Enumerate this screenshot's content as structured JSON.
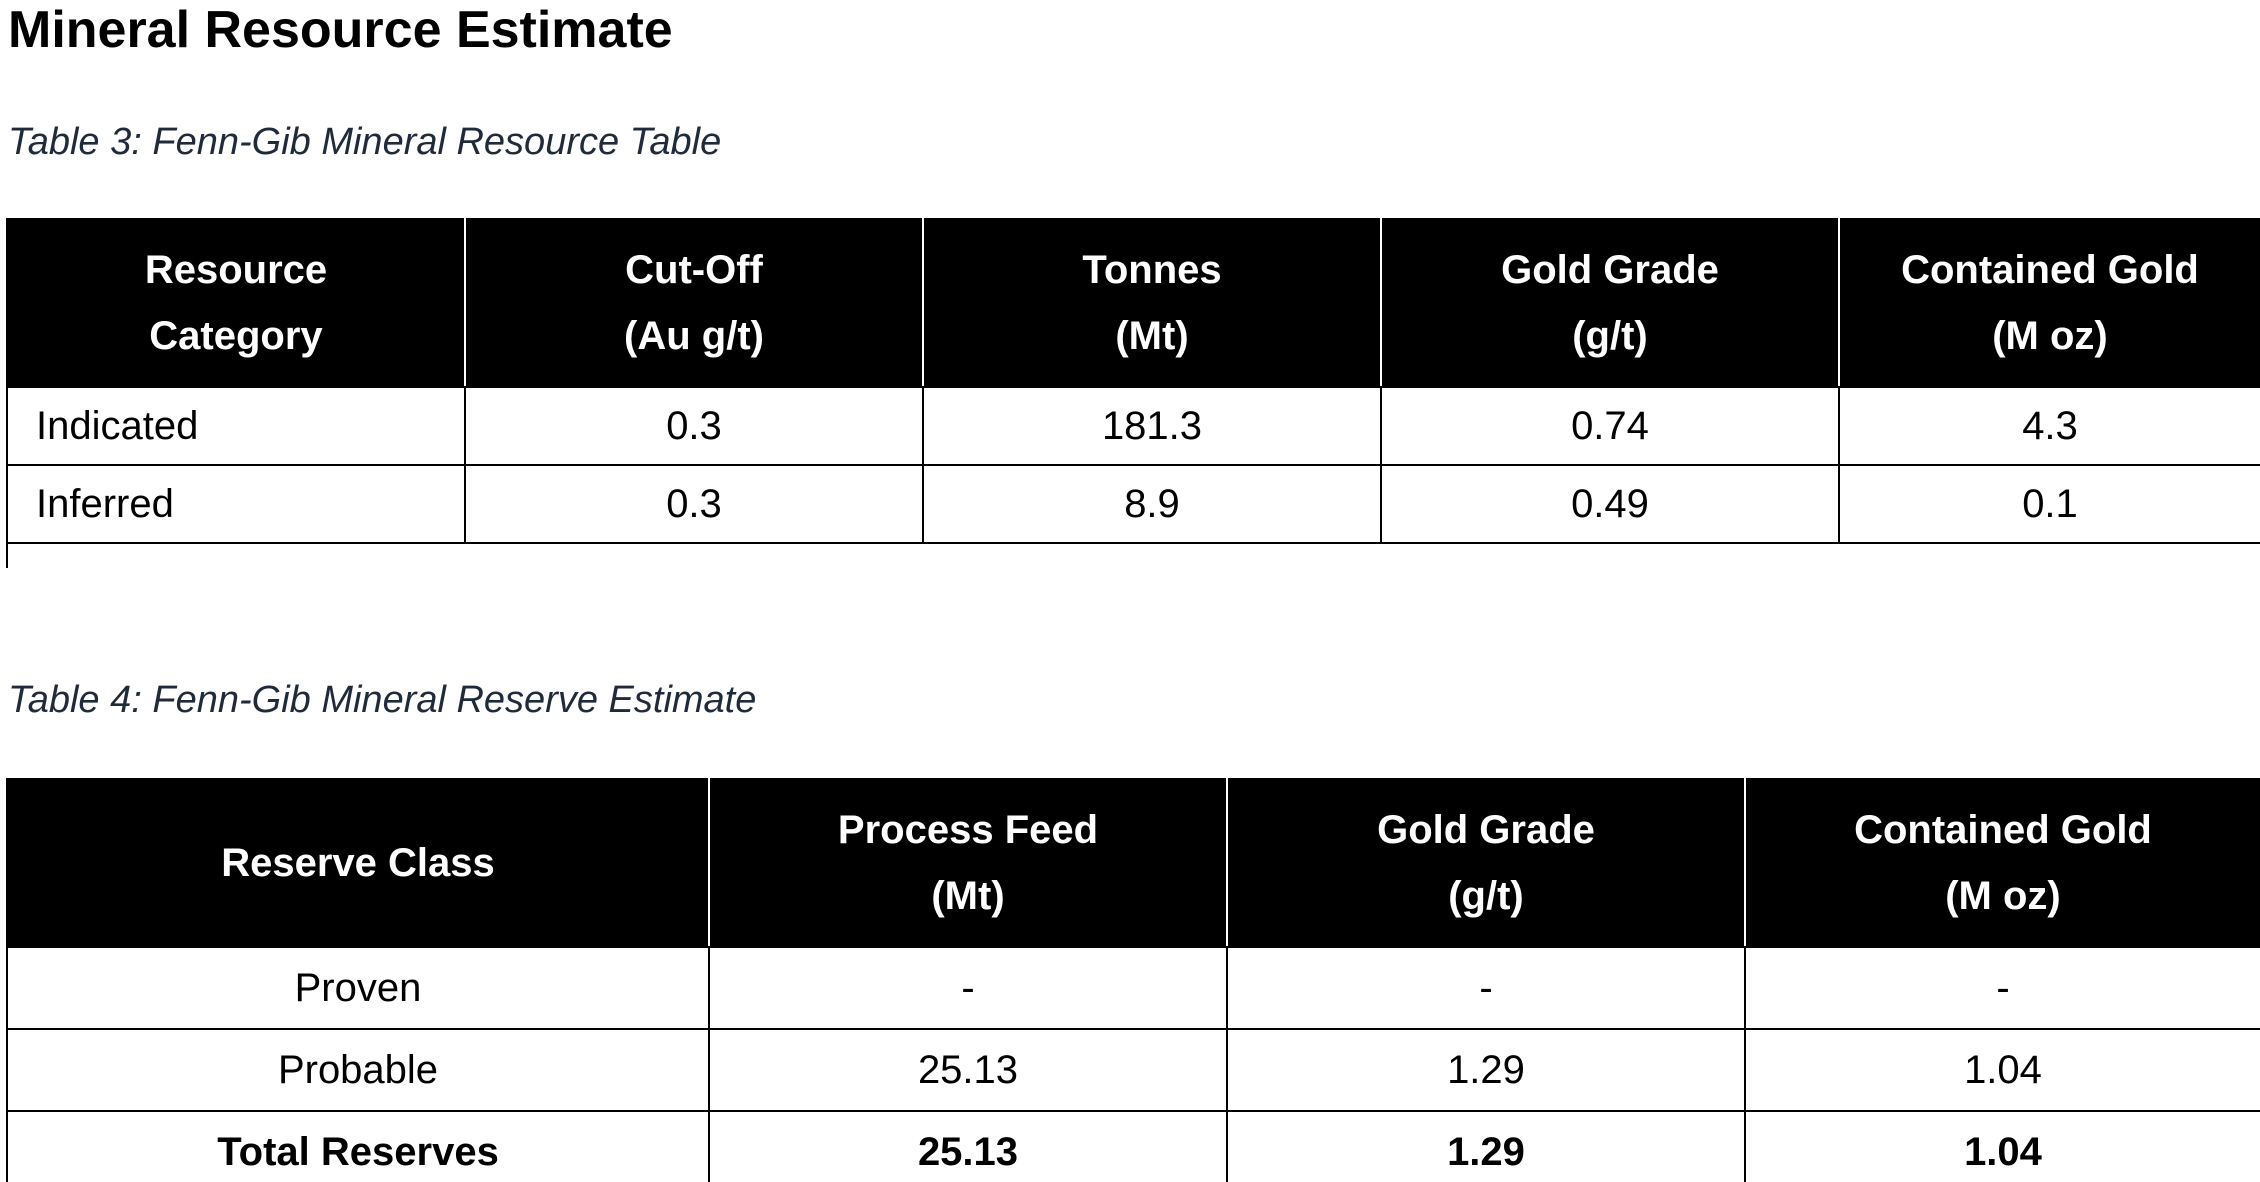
{
  "heading": "Mineral Resource Estimate",
  "table3": {
    "caption": "Table 3: Fenn-Gib Mineral Resource Table",
    "headers": [
      [
        "Resource",
        "Category"
      ],
      [
        "Cut-Off",
        "(Au g/t)"
      ],
      [
        "Tonnes",
        "(Mt)"
      ],
      [
        "Gold Grade",
        "(g/t)"
      ],
      [
        "Contained Gold",
        "(M oz)"
      ]
    ],
    "rows": [
      [
        "Indicated",
        "0.3",
        "181.3",
        "0.74",
        "4.3"
      ],
      [
        "Inferred",
        "0.3",
        "8.9",
        "0.49",
        "0.1"
      ]
    ]
  },
  "table4": {
    "caption": "Table 4: Fenn-Gib Mineral Reserve Estimate",
    "headers": [
      [
        "Reserve Class"
      ],
      [
        "Process Feed",
        "(Mt)"
      ],
      [
        "Gold Grade",
        "(g/t)"
      ],
      [
        "Contained Gold",
        "(M oz)"
      ]
    ],
    "rows": [
      [
        "Proven",
        "-",
        "-",
        "-"
      ],
      [
        "Probable",
        "25.13",
        "1.29",
        "1.04"
      ],
      [
        "Total Reserves",
        "25.13",
        "1.29",
        "1.04"
      ]
    ]
  }
}
